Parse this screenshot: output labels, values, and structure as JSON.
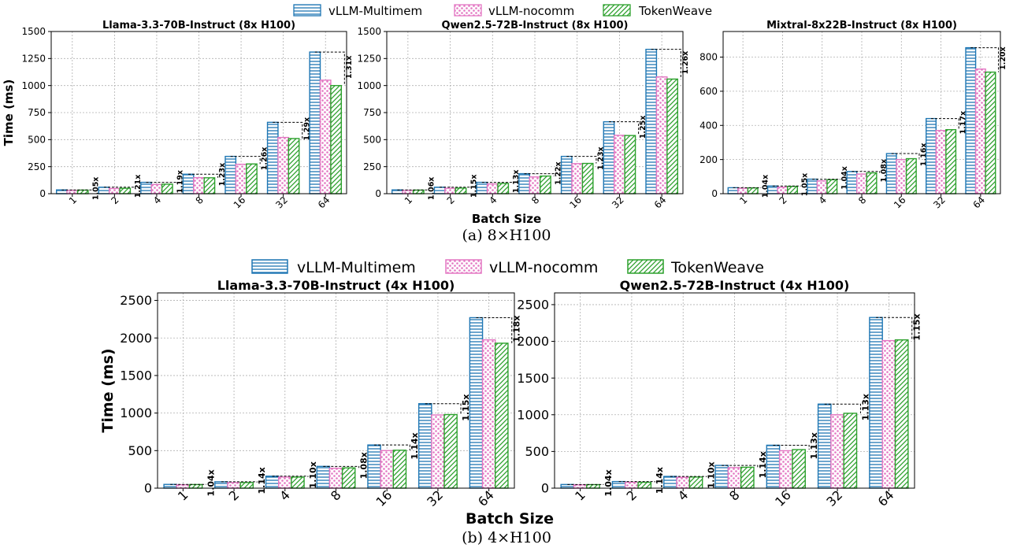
{
  "legend": [
    {
      "name": "vLLM-Multimem",
      "color": "#1f77b4",
      "pattern": "horizontal-stripes"
    },
    {
      "name": "vLLM-nocomm",
      "color": "#e377c2",
      "pattern": "dots"
    },
    {
      "name": "TokenWeave",
      "color": "#2ca02c",
      "pattern": "diagonal-hatch"
    }
  ],
  "captions": {
    "a": "(a) 8×H100",
    "b": "(b) 4×H100"
  },
  "chart_data": [
    {
      "type": "bar",
      "title": "Llama-3.3-70B-Instruct (8x H100)",
      "xlabel": "",
      "ylabel": "Time (ms)",
      "ylim": [
        0,
        1500
      ],
      "yticks": [
        "0",
        "250",
        "500",
        "750",
        "1000",
        "1250",
        "1500"
      ],
      "categories": [
        "1",
        "2",
        "4",
        "8",
        "16",
        "32",
        "64"
      ],
      "series": [
        {
          "name": "vLLM-Multimem",
          "values": [
            35,
            60,
            105,
            180,
            345,
            660,
            1310
          ]
        },
        {
          "name": "vLLM-nocomm",
          "values": [
            30,
            48,
            85,
            148,
            272,
            520,
            1050
          ]
        },
        {
          "name": "TokenWeave",
          "values": [
            33,
            50,
            88,
            147,
            275,
            510,
            1000
          ]
        }
      ],
      "speedups": [
        "1.05x",
        "1.21x",
        "1.19x",
        "1.23x",
        "1.26x",
        "1.29x",
        "1.31x"
      ],
      "grid": true
    },
    {
      "type": "bar",
      "title": "Qwen2.5-72B-Instruct (8x H100)",
      "xlabel": "Batch Size",
      "ylabel": "",
      "ylim": [
        0,
        1500
      ],
      "yticks": [
        "0",
        "250",
        "500",
        "750",
        "1000",
        "1250",
        "1500"
      ],
      "categories": [
        "1",
        "2",
        "4",
        "8",
        "16",
        "32",
        "64"
      ],
      "series": [
        {
          "name": "vLLM-Multimem",
          "values": [
            35,
            60,
            105,
            185,
            345,
            665,
            1335
          ]
        },
        {
          "name": "vLLM-nocomm",
          "values": [
            30,
            50,
            90,
            155,
            278,
            540,
            1080
          ]
        },
        {
          "name": "TokenWeave",
          "values": [
            33,
            52,
            95,
            163,
            280,
            538,
            1060
          ]
        }
      ],
      "speedups": [
        "1.06x",
        "1.15x",
        "1.13x",
        "1.22x",
        "1.23x",
        "1.25x",
        "1.26x"
      ],
      "grid": true
    },
    {
      "type": "bar",
      "title": "Mixtral-8x22B-Instruct (8x H100)",
      "xlabel": "",
      "ylabel": "",
      "ylim": [
        0,
        950
      ],
      "yticks": [
        "0",
        "200",
        "400",
        "600",
        "800"
      ],
      "categories": [
        "1",
        "2",
        "4",
        "8",
        "16",
        "32",
        "64"
      ],
      "series": [
        {
          "name": "vLLM-Multimem",
          "values": [
            35,
            45,
            85,
            130,
            235,
            440,
            855
          ]
        },
        {
          "name": "vLLM-nocomm",
          "values": [
            32,
            38,
            75,
            115,
            200,
            370,
            730
          ]
        },
        {
          "name": "TokenWeave",
          "values": [
            34,
            43,
            82,
            122,
            205,
            375,
            712
          ]
        }
      ],
      "speedups": [
        "1.04x",
        "1.05x",
        "1.04x",
        "1.08x",
        "1.16x",
        "1.17x",
        "1.20x"
      ],
      "grid": true
    },
    {
      "type": "bar",
      "title": "Llama-3.3-70B-Instruct (4x H100)",
      "xlabel": "",
      "ylabel": "Time (ms)",
      "ylim": [
        0,
        2600
      ],
      "yticks": [
        "0",
        "500",
        "1000",
        "1500",
        "2000",
        "2500"
      ],
      "categories": [
        "1",
        "2",
        "4",
        "8",
        "16",
        "32",
        "64"
      ],
      "series": [
        {
          "name": "vLLM-Multimem",
          "values": [
            50,
            85,
            160,
            290,
            575,
            1125,
            2270
          ]
        },
        {
          "name": "vLLM-nocomm",
          "values": [
            45,
            75,
            148,
            265,
            500,
            975,
            1975
          ]
        },
        {
          "name": "TokenWeave",
          "values": [
            48,
            75,
            148,
            270,
            505,
            980,
            1930
          ]
        }
      ],
      "speedups": [
        "1.04x",
        "1.14x",
        "1.10x",
        "1.08x",
        "1.14x",
        "1.15x",
        "1.18x"
      ],
      "grid": true
    },
    {
      "type": "bar",
      "title": "Qwen2.5-72B-Instruct (4x H100)",
      "xlabel": "",
      "ylabel": "",
      "ylim": [
        0,
        2660
      ],
      "yticks": [
        "0",
        "500",
        "1000",
        "1500",
        "2000",
        "2500"
      ],
      "categories": [
        "1",
        "2",
        "4",
        "8",
        "16",
        "32",
        "64"
      ],
      "series": [
        {
          "name": "vLLM-Multimem",
          "values": [
            50,
            90,
            160,
            310,
            585,
            1145,
            2325
          ]
        },
        {
          "name": "vLLM-nocomm",
          "values": [
            45,
            80,
            148,
            280,
            510,
            1000,
            2010
          ]
        },
        {
          "name": "TokenWeave",
          "values": [
            48,
            80,
            152,
            285,
            525,
            1020,
            2020
          ]
        }
      ],
      "speedups": [
        "1.04x",
        "1.14x",
        "1.10x",
        "1.14x",
        "1.13x",
        "1.13x",
        "1.15x"
      ],
      "grid": true
    }
  ],
  "shared_xlabel": "Batch Size"
}
